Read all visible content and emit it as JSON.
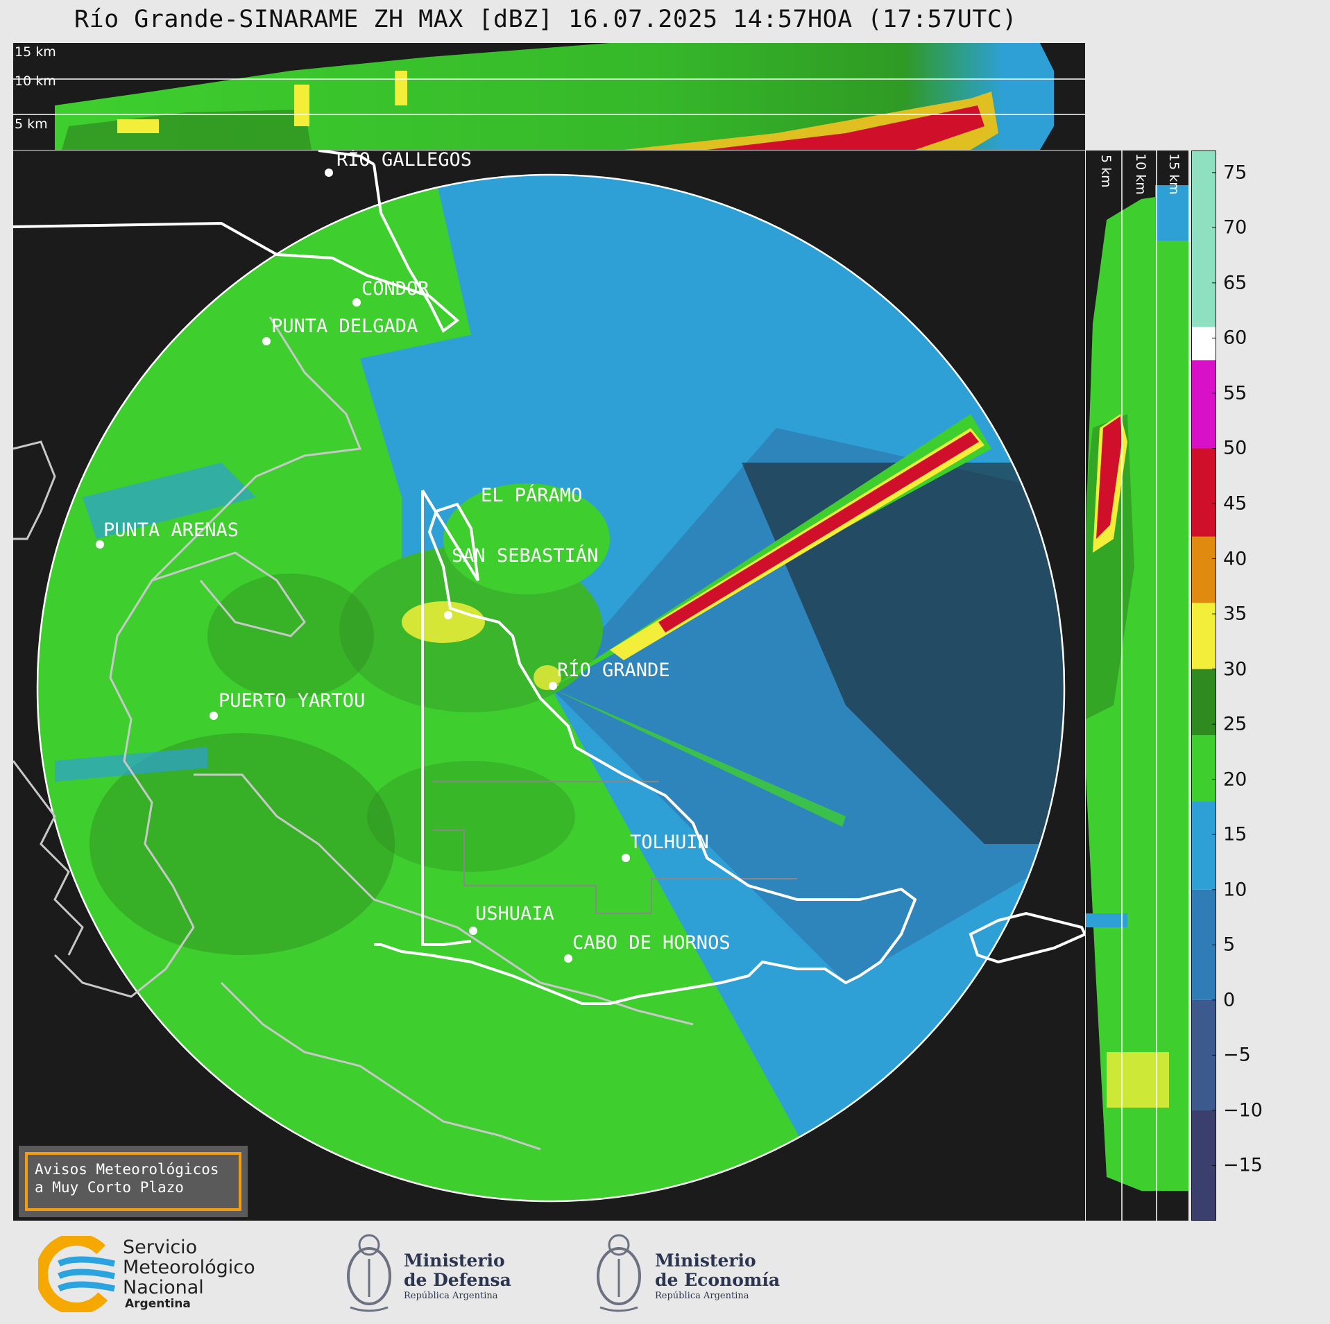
{
  "title": "Río Grande-SINARAME ZH MAX [dBZ] 16.07.2025 14:57HOA (17:57UTC)",
  "height_labels": [
    "15 km",
    "10 km",
    "5 km"
  ],
  "side_height_labels": [
    "5 km",
    "10 km",
    "15 km"
  ],
  "places": [
    {
      "name": "RÍO GALLEGOS"
    },
    {
      "name": "CONDOR"
    },
    {
      "name": "PUNTA DELGADA"
    },
    {
      "name": "EL PÁRAMO"
    },
    {
      "name": "PUNTA ARENAS"
    },
    {
      "name": "SAN SEBASTIÁN"
    },
    {
      "name": "RÍO GRANDE"
    },
    {
      "name": "PUERTO YARTOU"
    },
    {
      "name": "TOLHUIN"
    },
    {
      "name": "USHUAIA"
    },
    {
      "name": "CABO DE HORNOS"
    }
  ],
  "colorbar": {
    "unit": "dBZ",
    "ticks": [
      "75",
      "70",
      "65",
      "60",
      "55",
      "50",
      "45",
      "40",
      "35",
      "30",
      "25",
      "20",
      "15",
      "10",
      "5",
      "0",
      "−5",
      "−10",
      "−15"
    ],
    "range": [
      -20,
      77
    ],
    "colors": {
      "low": "#3a3f6e",
      "blue": "#2ea0d6",
      "green": "#3ecf2e",
      "dark_green": "#2f8a1f",
      "yellow": "#f2ee3a",
      "orange": "#e08a10",
      "red": "#d0102a",
      "magenta": "#d810c8",
      "white": "#ffffff",
      "teal": "#8fe0c0"
    }
  },
  "notice": {
    "line1": "Avisos Meteorológicos",
    "line2": "a Muy Corto Plazo"
  },
  "logos": {
    "smn": {
      "line1": "Servicio",
      "line2": "Meteorológico",
      "line3": "Nacional",
      "line4": "Argentina"
    },
    "defensa": {
      "line1": "Ministerio",
      "line2": "de Defensa",
      "line3": "República Argentina"
    },
    "economia": {
      "line1": "Ministerio",
      "line2": "de Economía",
      "line3": "República Argentina"
    }
  }
}
